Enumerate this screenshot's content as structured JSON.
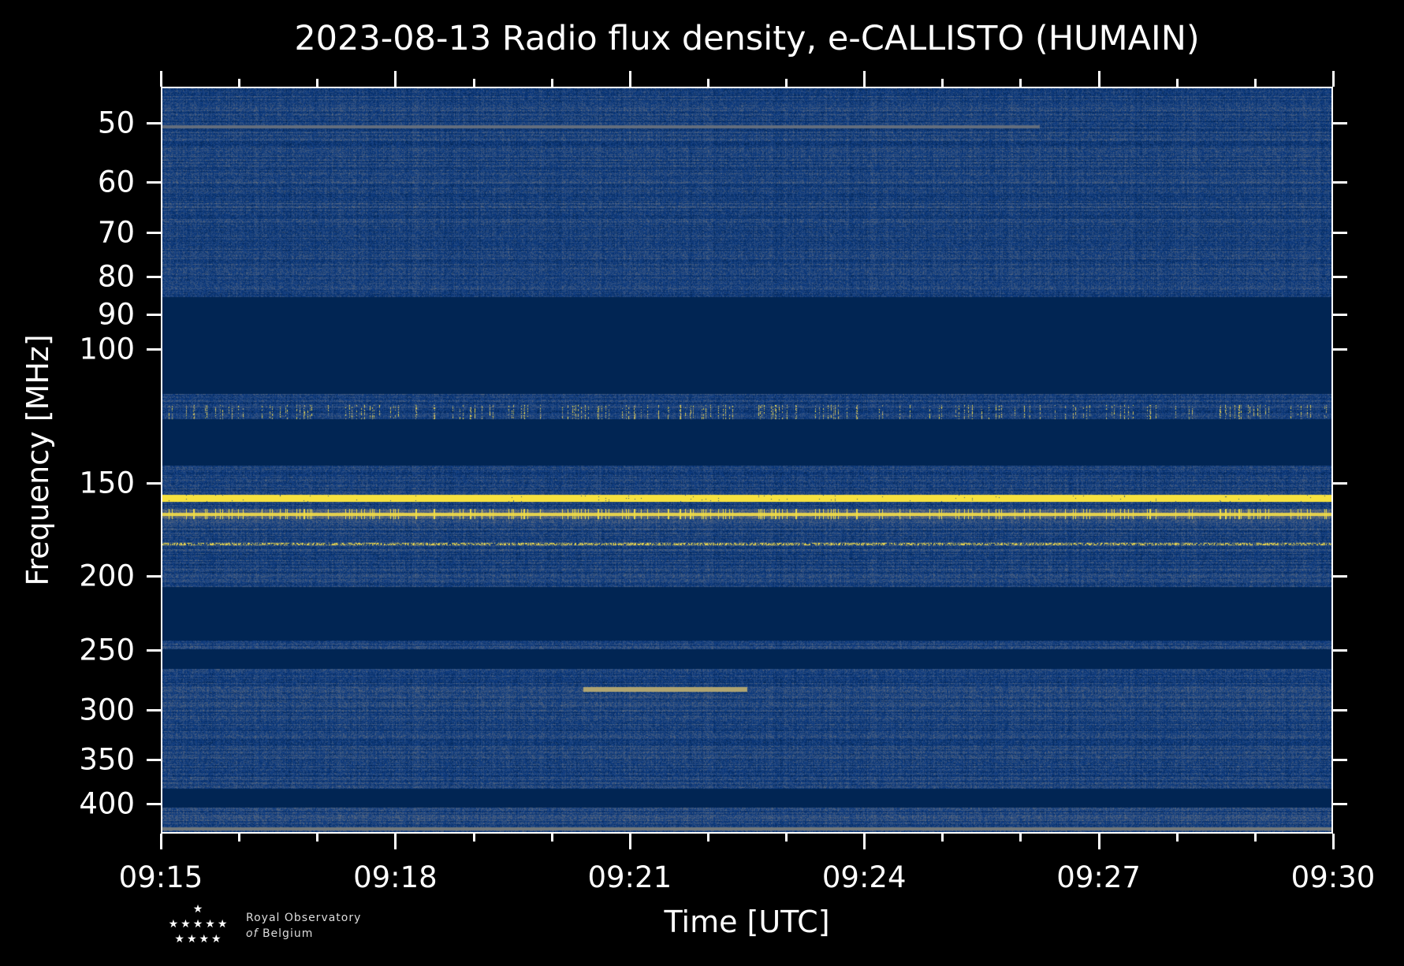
{
  "chart_data": {
    "type": "heatmap",
    "title": "2023-08-13 Radio flux density, e-CALLISTO (HUMAIN)",
    "xlabel": "Time [UTC]",
    "ylabel": "Frequency [MHz]",
    "x_tick_labels": [
      "09:15",
      "09:18",
      "09:21",
      "09:24",
      "09:27",
      "09:30"
    ],
    "xlim": [
      "09:15",
      "09:30"
    ],
    "y_tick_labels": [
      "50",
      "60",
      "70",
      "80",
      "90",
      "100",
      "150",
      "200",
      "250",
      "300",
      "350",
      "400"
    ],
    "ylim": [
      45,
      430
    ],
    "y_inverted": true,
    "colormap": "cividis",
    "features": [
      {
        "type": "no-data band",
        "freq_range": [
          85,
          118
        ]
      },
      {
        "type": "no-data band",
        "freq_range": [
          130,
          145
        ]
      },
      {
        "type": "no-data band",
        "freq_range": [
          207,
          240
        ]
      },
      {
        "type": "no-data band",
        "freq_range": [
          250,
          268
        ]
      },
      {
        "type": "no-data band",
        "freq_range": [
          383,
          402
        ]
      },
      {
        "type": "persistent RFI",
        "freq": 158
      },
      {
        "type": "persistent RFI",
        "freq": 168
      },
      {
        "type": "persistent RFI",
        "freq": 182
      }
    ]
  },
  "logo": {
    "line1": "Royal Observatory",
    "line2_prefix": "of",
    "line2": "Belgium"
  },
  "colors": {
    "low": "#00224e",
    "high": "#fee838",
    "background": "#000000"
  }
}
